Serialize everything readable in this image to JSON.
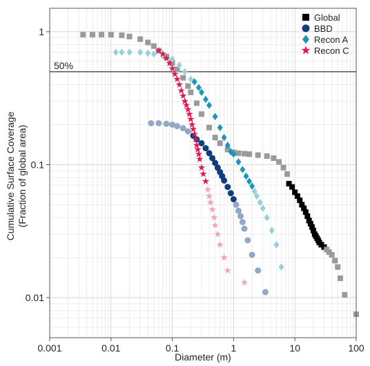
{
  "chart_data": {
    "type": "scatter",
    "title": "",
    "xlabel": "Diameter (m)",
    "ylabel_lines": [
      "Cumulative Surface Coverage",
      "(Fraction of global area)"
    ],
    "x_scale": "log",
    "y_scale": "log",
    "xlim": [
      0.001,
      100
    ],
    "ylim": [
      0.005,
      1.5
    ],
    "grid": true,
    "x_tick_labels": [
      "0.001",
      "0.01",
      "0.1",
      "1",
      "10",
      "100"
    ],
    "x_tick_values": [
      0.001,
      0.01,
      0.1,
      1,
      10,
      100
    ],
    "y_tick_labels": [
      "0.01",
      "0.1",
      "1"
    ],
    "y_tick_values": [
      0.01,
      0.1,
      1
    ],
    "reference_line": {
      "y": 0.5,
      "label": "50%"
    },
    "legend": {
      "placement": "top-right"
    },
    "series": [
      {
        "name": "Global",
        "marker": "square",
        "color": "#000000",
        "faded_color": "#9a9a9a",
        "highlight_range": [
          8,
          30
        ],
        "x": [
          0.0035,
          0.005,
          0.007,
          0.01,
          0.015,
          0.02,
          0.03,
          0.04,
          0.05,
          0.06,
          0.08,
          0.1,
          0.12,
          0.15,
          0.18,
          0.2,
          0.25,
          0.3,
          0.4,
          0.5,
          0.6,
          0.8,
          1.0,
          1.2,
          1.5,
          1.8,
          2.5,
          3.5,
          4.5,
          5.5,
          6.5,
          7.5,
          8,
          9,
          10,
          11,
          12,
          13,
          14,
          15,
          16,
          17,
          18,
          19,
          20,
          21,
          22,
          23,
          24,
          25,
          27,
          30,
          33,
          36,
          40,
          45,
          50,
          55,
          65,
          100
        ],
        "y": [
          0.95,
          0.95,
          0.95,
          0.95,
          0.94,
          0.92,
          0.88,
          0.83,
          0.78,
          0.72,
          0.65,
          0.58,
          0.52,
          0.45,
          0.39,
          0.35,
          0.29,
          0.24,
          0.19,
          0.16,
          0.145,
          0.13,
          0.124,
          0.122,
          0.121,
          0.12,
          0.118,
          0.116,
          0.112,
          0.105,
          0.095,
          0.085,
          0.072,
          0.068,
          0.062,
          0.058,
          0.054,
          0.05,
          0.047,
          0.044,
          0.041,
          0.038,
          0.036,
          0.034,
          0.032,
          0.03,
          0.029,
          0.028,
          0.027,
          0.026,
          0.025,
          0.024,
          0.023,
          0.022,
          0.021,
          0.019,
          0.017,
          0.014,
          0.0105,
          0.0075
        ]
      },
      {
        "name": "BBD",
        "marker": "circle",
        "color": "#123d7c",
        "faded_color": "#93a8c6",
        "highlight_range": [
          0.22,
          1.0
        ],
        "x": [
          0.045,
          0.06,
          0.08,
          0.1,
          0.12,
          0.15,
          0.18,
          0.22,
          0.25,
          0.3,
          0.35,
          0.4,
          0.45,
          0.5,
          0.55,
          0.6,
          0.65,
          0.7,
          0.8,
          0.9,
          1.0,
          1.1,
          1.2,
          1.3,
          1.4,
          1.5,
          1.7,
          2.0,
          2.5,
          3.3
        ],
        "y": [
          0.205,
          0.205,
          0.203,
          0.2,
          0.195,
          0.188,
          0.178,
          0.165,
          0.155,
          0.145,
          0.133,
          0.122,
          0.112,
          0.103,
          0.095,
          0.088,
          0.082,
          0.076,
          0.068,
          0.061,
          0.055,
          0.05,
          0.045,
          0.041,
          0.037,
          0.033,
          0.027,
          0.021,
          0.016,
          0.011
        ]
      },
      {
        "name": "Recon A",
        "marker": "diamond",
        "color": "#1e95b8",
        "faded_color": "#96cfe0",
        "highlight_range": [
          0.22,
          2.0
        ],
        "x": [
          0.012,
          0.015,
          0.02,
          0.03,
          0.04,
          0.05,
          0.07,
          0.1,
          0.13,
          0.16,
          0.2,
          0.23,
          0.27,
          0.3,
          0.35,
          0.4,
          0.5,
          0.6,
          0.7,
          0.8,
          0.9,
          1.0,
          1.2,
          1.4,
          1.6,
          1.8,
          2.0,
          2.2,
          2.4,
          2.7,
          3.0,
          3.5,
          4.2,
          5.0,
          6.0
        ],
        "y": [
          0.7,
          0.7,
          0.7,
          0.7,
          0.69,
          0.68,
          0.66,
          0.62,
          0.56,
          0.5,
          0.44,
          0.42,
          0.38,
          0.35,
          0.31,
          0.28,
          0.23,
          0.19,
          0.16,
          0.14,
          0.125,
          0.12,
          0.105,
          0.092,
          0.082,
          0.075,
          0.069,
          0.063,
          0.058,
          0.052,
          0.047,
          0.04,
          0.032,
          0.025,
          0.017
        ]
      },
      {
        "name": "Recon C",
        "marker": "star",
        "color": "#e01a4f",
        "faded_color": "#f2a3b7",
        "highlight_range": [
          0.06,
          0.35
        ],
        "x": [
          0.06,
          0.07,
          0.08,
          0.09,
          0.1,
          0.11,
          0.12,
          0.13,
          0.14,
          0.15,
          0.16,
          0.17,
          0.18,
          0.19,
          0.2,
          0.21,
          0.22,
          0.23,
          0.24,
          0.25,
          0.26,
          0.27,
          0.28,
          0.3,
          0.32,
          0.35,
          0.38,
          0.4,
          0.42,
          0.45,
          0.48,
          0.5,
          0.55,
          0.6,
          0.7,
          0.8,
          1.5
        ],
        "y": [
          0.72,
          0.68,
          0.63,
          0.58,
          0.53,
          0.48,
          0.44,
          0.4,
          0.36,
          0.33,
          0.3,
          0.28,
          0.26,
          0.24,
          0.22,
          0.2,
          0.185,
          0.17,
          0.155,
          0.14,
          0.13,
          0.12,
          0.11,
          0.095,
          0.085,
          0.075,
          0.065,
          0.058,
          0.052,
          0.046,
          0.04,
          0.035,
          0.03,
          0.025,
          0.02,
          0.016,
          0.013
        ]
      }
    ]
  }
}
